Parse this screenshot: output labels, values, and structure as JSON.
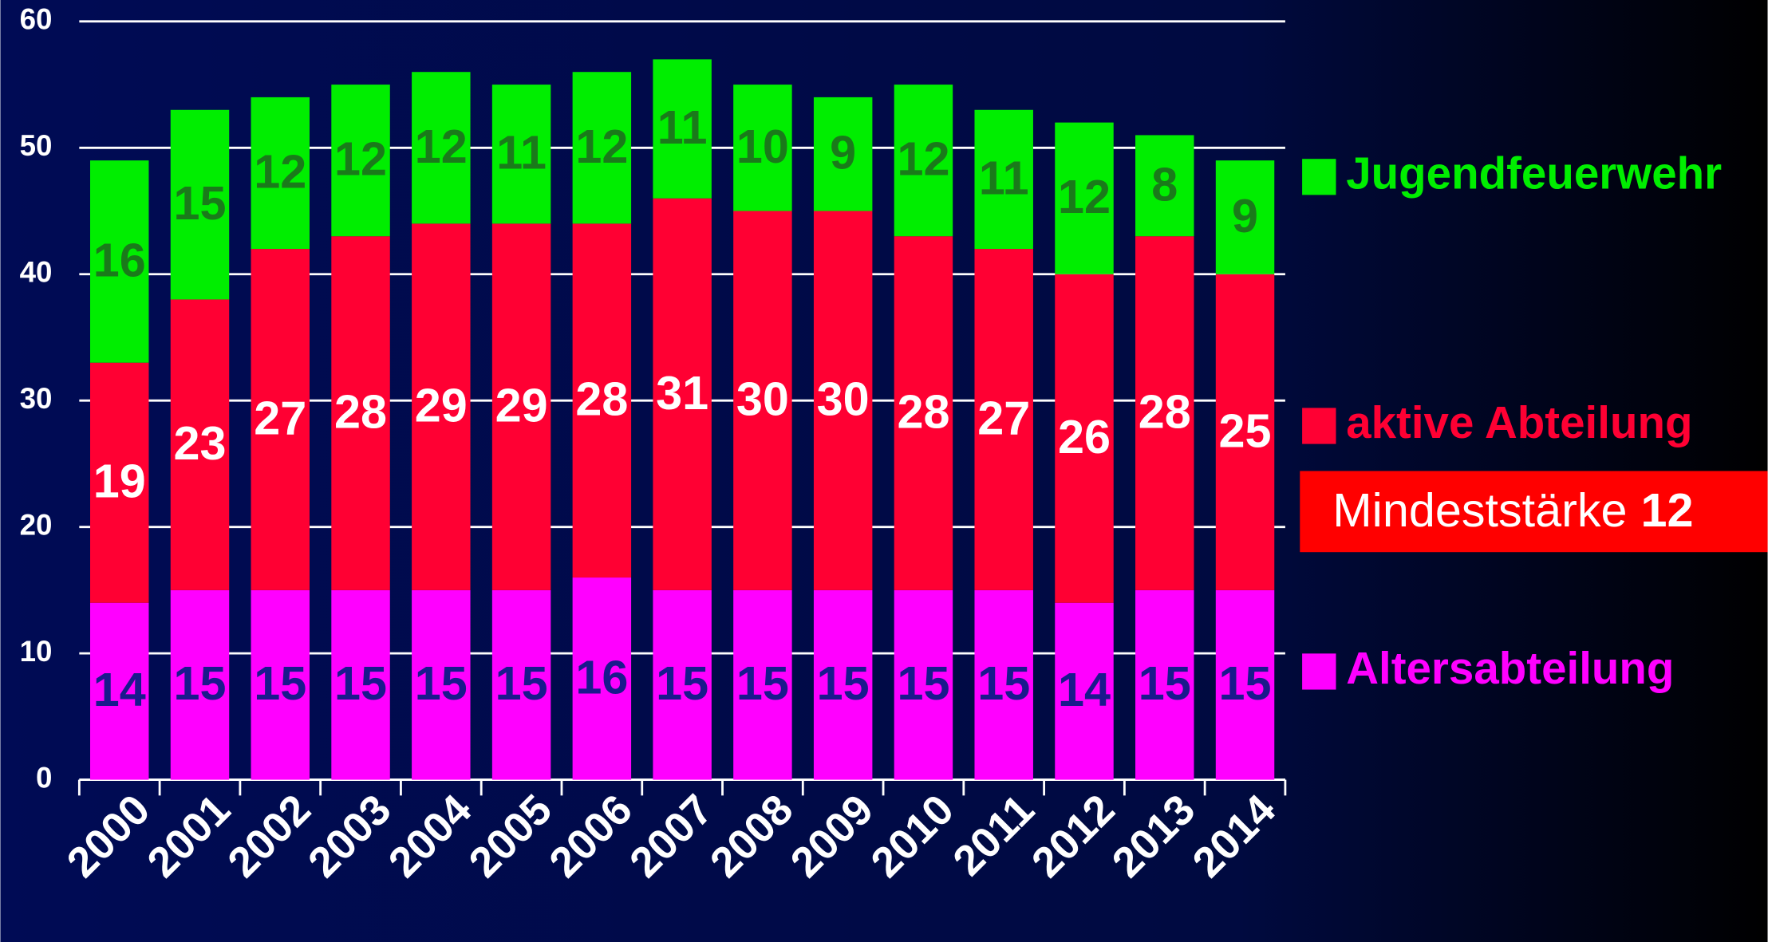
{
  "chart_data": {
    "type": "stacked-bar",
    "categories": [
      "2000",
      "2001",
      "2002",
      "2003",
      "2004",
      "2005",
      "2006",
      "2007",
      "2008",
      "2009",
      "2010",
      "2011",
      "2012",
      "2013",
      "2014"
    ],
    "series": [
      {
        "name": "Altersabteilung",
        "color": "#ff00ff",
        "label_color": "#1a1a8c",
        "values": [
          14,
          15,
          15,
          15,
          15,
          15,
          16,
          15,
          15,
          15,
          15,
          15,
          14,
          15,
          15
        ]
      },
      {
        "name": "aktive Abteilung",
        "color": "#ff0033",
        "label_color": "#ffffff",
        "values": [
          19,
          23,
          27,
          28,
          29,
          29,
          28,
          31,
          30,
          30,
          28,
          27,
          26,
          28,
          25
        ]
      },
      {
        "name": "Jugendfeuerwehr",
        "color": "#00ee00",
        "label_color": "#1a7a1a",
        "values": [
          16,
          15,
          12,
          12,
          12,
          11,
          12,
          11,
          10,
          9,
          12,
          11,
          12,
          8,
          9
        ]
      }
    ],
    "ylim": [
      0,
      60
    ],
    "yticks": [
      0,
      10,
      20,
      30,
      40,
      50,
      60
    ],
    "grid": true,
    "annotation": {
      "text": "Mindeststärke",
      "value": 12
    }
  }
}
